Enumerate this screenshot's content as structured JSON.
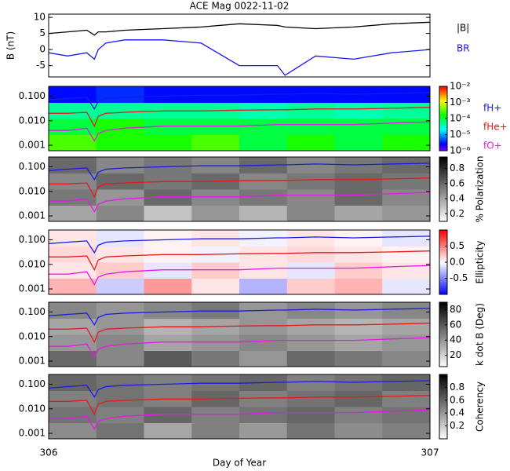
{
  "chart_data": [
    {
      "type": "line",
      "title": "ACE Mag 0022-11-02",
      "ylabel": "B (nT)",
      "x": [
        306,
        306.05,
        306.1,
        306.12,
        306.13,
        306.15,
        306.2,
        306.3,
        306.4,
        306.5,
        306.6,
        306.62,
        306.7,
        306.8,
        306.9,
        307
      ],
      "xlim": [
        306,
        307
      ],
      "ylim": [
        -8.5,
        11
      ],
      "yticks": [
        -5,
        0,
        5,
        10
      ],
      "series": [
        {
          "name": "|B|",
          "color": "#000000",
          "values": [
            5,
            5.5,
            6,
            4.5,
            5.5,
            5.5,
            6,
            6.5,
            7,
            8,
            7.5,
            7,
            6.5,
            7,
            8,
            8.5
          ]
        },
        {
          "name": "BR",
          "color": "#1a1ae6",
          "values": [
            -1,
            -2,
            -1,
            -3,
            0,
            2,
            3,
            3,
            2,
            -5,
            -5,
            -8,
            -2,
            -3,
            -1,
            0
          ]
        }
      ]
    },
    {
      "type": "spectrogram",
      "log_y": true,
      "ylim": [
        0.0006,
        0.25
      ],
      "yticks": [
        {
          "value": 0.1,
          "label": "0.100"
        },
        {
          "value": 0.01,
          "label": "0.010"
        },
        0.001
      ],
      "colormap": "rainbow",
      "zlog": true,
      "zlim": [
        1e-06,
        0.01
      ],
      "zticks": [
        {
          "value": 0.01,
          "label": "10⁻²"
        },
        {
          "value": 0.001,
          "label": "10⁻³"
        },
        {
          "value": 0.0001,
          "label": "10⁻⁴"
        },
        {
          "value": 1e-05,
          "label": "10⁻⁵"
        },
        {
          "value": 1e-06,
          "label": "10⁻⁶"
        }
      ],
      "z": [
        [
          0.0003,
          0.0002,
          0.0002,
          0.0003,
          0.0001,
          0.0002,
          0.0001,
          0.0002
        ],
        [
          0.0001,
          0.0002,
          0.0001,
          0.0001,
          0.0001,
          0.0001,
          0.0001,
          0.0001
        ],
        [
          5e-05,
          5e-05,
          5e-05,
          5e-05,
          4e-05,
          5e-05,
          4e-05,
          5e-05
        ],
        [
          3e-06,
          4e-06,
          3e-06,
          3e-06,
          3e-06,
          3e-06,
          3e-06,
          3e-06
        ]
      ],
      "series": [
        {
          "name": "fH+",
          "color": "#1a1ae6",
          "values": [
            0.07,
            0.08,
            0.09,
            0.03,
            0.06,
            0.08,
            0.09,
            0.1,
            0.11,
            0.11,
            0.12,
            0.12,
            0.13,
            0.12,
            0.13,
            0.14
          ]
        },
        {
          "name": "fHe+",
          "color": "#e61a1a",
          "values": [
            0.02,
            0.02,
            0.022,
            0.006,
            0.015,
            0.02,
            0.022,
            0.025,
            0.025,
            0.027,
            0.028,
            0.028,
            0.03,
            0.03,
            0.032,
            0.035
          ]
        },
        {
          "name": "fO+",
          "color": "#e61ae6",
          "values": [
            0.004,
            0.004,
            0.005,
            0.0015,
            0.003,
            0.004,
            0.005,
            0.006,
            0.006,
            0.006,
            0.007,
            0.007,
            0.007,
            0.007,
            0.008,
            0.009
          ]
        }
      ]
    },
    {
      "type": "spectrogram",
      "zlabel": "% Polarization",
      "colormap": "gray",
      "zlim": [
        0.1,
        0.95
      ],
      "zticks": [
        0.2,
        0.4,
        0.6,
        0.8
      ],
      "z": [
        [
          0.4,
          0.5,
          0.3,
          0.45,
          0.35,
          0.5,
          0.4,
          0.45
        ],
        [
          0.55,
          0.45,
          0.6,
          0.5,
          0.55,
          0.5,
          0.6,
          0.5
        ],
        [
          0.5,
          0.6,
          0.55,
          0.6,
          0.5,
          0.55,
          0.6,
          0.55
        ],
        [
          0.6,
          0.5,
          0.55,
          0.5,
          0.6,
          0.5,
          0.55,
          0.6
        ]
      ]
    },
    {
      "type": "spectrogram",
      "zlabel": "Ellipticity",
      "colormap": "bwr",
      "zlim": [
        -1,
        1
      ],
      "zticks": [
        -0.5,
        {
          "value": 0,
          "label": "0.0"
        },
        0.5
      ],
      "z": [
        [
          0.3,
          -0.2,
          0.4,
          0.1,
          -0.3,
          0.2,
          0.3,
          -0.1
        ],
        [
          0.1,
          0.2,
          -0.1,
          0.2,
          0.1,
          -0.1,
          0.2,
          0.1
        ],
        [
          0.15,
          0.1,
          0.05,
          -0.05,
          0.1,
          0.15,
          0.1,
          0.05
        ],
        [
          0.1,
          -0.1,
          0.05,
          0.1,
          -0.05,
          0.1,
          0.05,
          -0.1
        ]
      ]
    },
    {
      "type": "spectrogram",
      "zlabel": "k dot B (Deg)",
      "colormap": "gray",
      "zlim": [
        5,
        90
      ],
      "zticks": [
        20,
        40,
        60,
        80
      ],
      "z": [
        [
          55,
          45,
          60,
          50,
          40,
          55,
          50,
          45
        ],
        [
          40,
          45,
          35,
          40,
          45,
          40,
          35,
          40
        ],
        [
          35,
          40,
          30,
          35,
          40,
          35,
          30,
          35
        ],
        [
          45,
          40,
          45,
          50,
          40,
          45,
          40,
          45
        ]
      ]
    },
    {
      "type": "spectrogram",
      "zlabel": "Coherency",
      "colormap": "gray",
      "zlim": [
        0,
        1
      ],
      "zticks": [
        0.2,
        0.4,
        0.6,
        0.8
      ],
      "xlabel": "Day of Year",
      "xticks": [
        306,
        307
      ],
      "z": [
        [
          0.45,
          0.55,
          0.35,
          0.5,
          0.4,
          0.55,
          0.45,
          0.5
        ],
        [
          0.55,
          0.5,
          0.6,
          0.5,
          0.55,
          0.6,
          0.5,
          0.55
        ],
        [
          0.5,
          0.55,
          0.5,
          0.6,
          0.5,
          0.55,
          0.6,
          0.5
        ],
        [
          0.6,
          0.55,
          0.5,
          0.55,
          0.6,
          0.5,
          0.55,
          0.6
        ]
      ]
    }
  ]
}
